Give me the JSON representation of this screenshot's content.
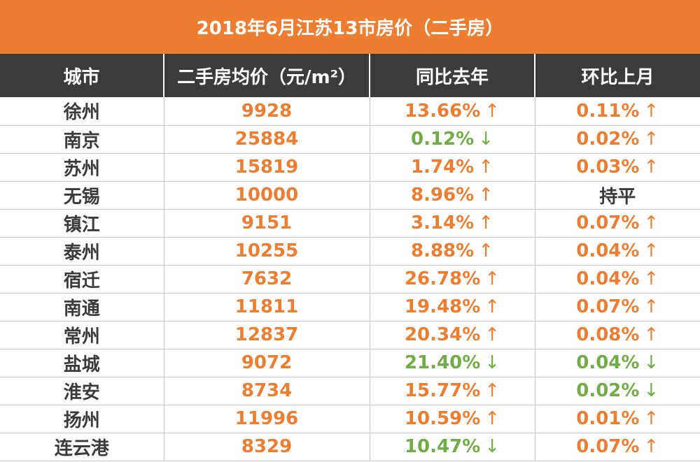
{
  "title": "2018年6月江苏13市房价（二手房）",
  "headers": [
    "城市",
    "二手房均价（元/m²）",
    "同比去年",
    "环比上月"
  ],
  "arrows": {
    "up": "↑",
    "down": "↓"
  },
  "colors": {
    "title_bg": "#ed7d31",
    "header_bg": "#3b3b3b",
    "up": "#ed7d31",
    "down": "#70ad47"
  },
  "rows": [
    {
      "city": "徐州",
      "price": "9928",
      "yoy": "13.66%",
      "yoy_dir": "up",
      "mom": "0.11%",
      "mom_dir": "up"
    },
    {
      "city": "南京",
      "price": "25884",
      "yoy": "0.12%",
      "yoy_dir": "down",
      "mom": "0.02%",
      "mom_dir": "up"
    },
    {
      "city": "苏州",
      "price": "15819",
      "yoy": "1.74%",
      "yoy_dir": "up",
      "mom": "0.03%",
      "mom_dir": "up"
    },
    {
      "city": "无锡",
      "price": "10000",
      "yoy": "8.96%",
      "yoy_dir": "up",
      "mom": "持平",
      "mom_dir": "flat"
    },
    {
      "city": "镇江",
      "price": "9151",
      "yoy": "3.14%",
      "yoy_dir": "up",
      "mom": "0.07%",
      "mom_dir": "up"
    },
    {
      "city": "泰州",
      "price": "10255",
      "yoy": "8.88%",
      "yoy_dir": "up",
      "mom": "0.04%",
      "mom_dir": "up"
    },
    {
      "city": "宿迁",
      "price": "7632",
      "yoy": "26.78%",
      "yoy_dir": "up",
      "mom": "0.04%",
      "mom_dir": "up"
    },
    {
      "city": "南通",
      "price": "11811",
      "yoy": "19.48%",
      "yoy_dir": "up",
      "mom": "0.07%",
      "mom_dir": "up"
    },
    {
      "city": "常州",
      "price": "12837",
      "yoy": "20.34%",
      "yoy_dir": "up",
      "mom": "0.08%",
      "mom_dir": "up"
    },
    {
      "city": "盐城",
      "price": "9072",
      "yoy": "21.40%",
      "yoy_dir": "down",
      "mom": "0.04%",
      "mom_dir": "down"
    },
    {
      "city": "淮安",
      "price": "8734",
      "yoy": "15.77%",
      "yoy_dir": "up",
      "mom": "0.02%",
      "mom_dir": "down"
    },
    {
      "city": "扬州",
      "price": "11996",
      "yoy": "10.59%",
      "yoy_dir": "up",
      "mom": "0.01%",
      "mom_dir": "up"
    },
    {
      "city": "连云港",
      "price": "8329",
      "yoy": "10.47%",
      "yoy_dir": "down",
      "mom": "0.07%",
      "mom_dir": "up"
    }
  ]
}
